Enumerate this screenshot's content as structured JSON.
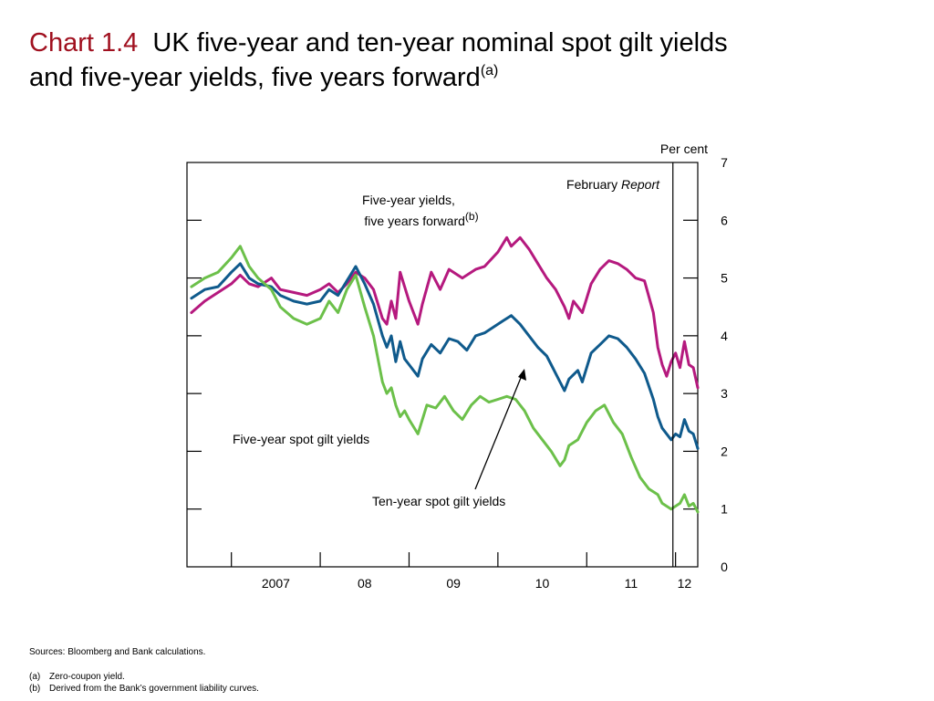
{
  "title": {
    "label": "Chart 1.4",
    "text_line1": "UK five-year and ten-year nominal spot gilt yields",
    "text_line2": "and five-year yields, five years forward",
    "marker": "(a)"
  },
  "notes": {
    "sources": "Sources:  Bloomberg and Bank calculations.",
    "a_key": "(a)",
    "a_text": "Zero-coupon yield.",
    "b_key": "(b)",
    "b_text": "Derived from the Bank’s government liability curves."
  },
  "chart_data": {
    "type": "line",
    "xlim": [
      2006.5,
      2012.25
    ],
    "ylim": [
      0,
      7
    ],
    "y_unit": "Per cent",
    "y_ticks": [
      "0",
      "1",
      "2",
      "3",
      "4",
      "5",
      "6",
      "7"
    ],
    "x_tick_labels": [
      {
        "label": "2007",
        "x": 2007.5
      },
      {
        "label": "08",
        "x": 2008.5
      },
      {
        "label": "09",
        "x": 2009.5
      },
      {
        "label": "10",
        "x": 2010.5
      },
      {
        "label": "11",
        "x": 2011.5
      },
      {
        "label": "12",
        "x": 2012.1
      }
    ],
    "x_year_ticks": [
      2007,
      2008,
      2009,
      2010,
      2011,
      2012
    ],
    "vline": {
      "x": 2011.97,
      "label_pre": "February",
      "label_em": "Report"
    },
    "annotations": {
      "five_year_forward": {
        "line1": "Five-year yields,",
        "line2": "five years forward",
        "marker": "(b)"
      },
      "five_year_spot": "Five-year spot gilt yields",
      "ten_year_spot": "Ten-year spot gilt yields"
    },
    "series": [
      {
        "key": "fwd",
        "color": "#b5197e",
        "points": [
          [
            2006.55,
            4.4
          ],
          [
            2006.7,
            4.6
          ],
          [
            2006.85,
            4.75
          ],
          [
            2007.0,
            4.9
          ],
          [
            2007.1,
            5.05
          ],
          [
            2007.2,
            4.9
          ],
          [
            2007.3,
            4.85
          ],
          [
            2007.45,
            5.0
          ],
          [
            2007.55,
            4.8
          ],
          [
            2007.7,
            4.75
          ],
          [
            2007.85,
            4.7
          ],
          [
            2008.0,
            4.8
          ],
          [
            2008.1,
            4.9
          ],
          [
            2008.2,
            4.75
          ],
          [
            2008.3,
            4.9
          ],
          [
            2008.4,
            5.1
          ],
          [
            2008.5,
            5.0
          ],
          [
            2008.6,
            4.8
          ],
          [
            2008.7,
            4.3
          ],
          [
            2008.75,
            4.2
          ],
          [
            2008.8,
            4.6
          ],
          [
            2008.85,
            4.3
          ],
          [
            2008.9,
            5.1
          ],
          [
            2009.0,
            4.6
          ],
          [
            2009.1,
            4.2
          ],
          [
            2009.15,
            4.55
          ],
          [
            2009.25,
            5.1
          ],
          [
            2009.35,
            4.8
          ],
          [
            2009.45,
            5.15
          ],
          [
            2009.6,
            5.0
          ],
          [
            2009.75,
            5.15
          ],
          [
            2009.85,
            5.2
          ],
          [
            2010.0,
            5.45
          ],
          [
            2010.1,
            5.7
          ],
          [
            2010.15,
            5.55
          ],
          [
            2010.25,
            5.7
          ],
          [
            2010.35,
            5.5
          ],
          [
            2010.45,
            5.25
          ],
          [
            2010.55,
            5.0
          ],
          [
            2010.65,
            4.8
          ],
          [
            2010.75,
            4.5
          ],
          [
            2010.8,
            4.3
          ],
          [
            2010.85,
            4.6
          ],
          [
            2010.95,
            4.4
          ],
          [
            2011.05,
            4.9
          ],
          [
            2011.15,
            5.15
          ],
          [
            2011.25,
            5.3
          ],
          [
            2011.35,
            5.25
          ],
          [
            2011.45,
            5.15
          ],
          [
            2011.55,
            5.0
          ],
          [
            2011.65,
            4.95
          ],
          [
            2011.75,
            4.4
          ],
          [
            2011.8,
            3.8
          ],
          [
            2011.85,
            3.5
          ],
          [
            2011.9,
            3.3
          ],
          [
            2011.95,
            3.55
          ],
          [
            2012.0,
            3.7
          ],
          [
            2012.05,
            3.45
          ],
          [
            2012.1,
            3.9
          ],
          [
            2012.15,
            3.5
          ],
          [
            2012.2,
            3.45
          ],
          [
            2012.25,
            3.1
          ]
        ]
      },
      {
        "key": "tenyr",
        "color": "#0f5a8c",
        "points": [
          [
            2006.55,
            4.65
          ],
          [
            2006.7,
            4.8
          ],
          [
            2006.85,
            4.85
          ],
          [
            2007.0,
            5.1
          ],
          [
            2007.1,
            5.25
          ],
          [
            2007.2,
            5.0
          ],
          [
            2007.3,
            4.9
          ],
          [
            2007.45,
            4.85
          ],
          [
            2007.55,
            4.7
          ],
          [
            2007.7,
            4.6
          ],
          [
            2007.85,
            4.55
          ],
          [
            2008.0,
            4.6
          ],
          [
            2008.1,
            4.8
          ],
          [
            2008.2,
            4.7
          ],
          [
            2008.3,
            4.95
          ],
          [
            2008.4,
            5.2
          ],
          [
            2008.5,
            4.9
          ],
          [
            2008.6,
            4.55
          ],
          [
            2008.7,
            4.0
          ],
          [
            2008.75,
            3.8
          ],
          [
            2008.8,
            4.0
          ],
          [
            2008.85,
            3.55
          ],
          [
            2008.9,
            3.9
          ],
          [
            2008.95,
            3.6
          ],
          [
            2009.0,
            3.5
          ],
          [
            2009.1,
            3.3
          ],
          [
            2009.15,
            3.6
          ],
          [
            2009.25,
            3.85
          ],
          [
            2009.35,
            3.7
          ],
          [
            2009.45,
            3.95
          ],
          [
            2009.55,
            3.9
          ],
          [
            2009.65,
            3.75
          ],
          [
            2009.75,
            4.0
          ],
          [
            2009.85,
            4.05
          ],
          [
            2009.95,
            4.15
          ],
          [
            2010.05,
            4.25
          ],
          [
            2010.15,
            4.35
          ],
          [
            2010.25,
            4.2
          ],
          [
            2010.35,
            4.0
          ],
          [
            2010.45,
            3.8
          ],
          [
            2010.55,
            3.65
          ],
          [
            2010.6,
            3.5
          ],
          [
            2010.7,
            3.2
          ],
          [
            2010.75,
            3.05
          ],
          [
            2010.8,
            3.25
          ],
          [
            2010.9,
            3.4
          ],
          [
            2010.95,
            3.2
          ],
          [
            2011.05,
            3.7
          ],
          [
            2011.15,
            3.85
          ],
          [
            2011.25,
            4.0
          ],
          [
            2011.35,
            3.95
          ],
          [
            2011.45,
            3.8
          ],
          [
            2011.55,
            3.6
          ],
          [
            2011.65,
            3.35
          ],
          [
            2011.75,
            2.9
          ],
          [
            2011.8,
            2.6
          ],
          [
            2011.85,
            2.4
          ],
          [
            2011.9,
            2.3
          ],
          [
            2011.95,
            2.2
          ],
          [
            2012.0,
            2.3
          ],
          [
            2012.05,
            2.25
          ],
          [
            2012.1,
            2.55
          ],
          [
            2012.15,
            2.35
          ],
          [
            2012.2,
            2.3
          ],
          [
            2012.25,
            2.05
          ]
        ]
      },
      {
        "key": "fivyr",
        "color": "#6cc04a",
        "points": [
          [
            2006.55,
            4.85
          ],
          [
            2006.7,
            5.0
          ],
          [
            2006.85,
            5.1
          ],
          [
            2007.0,
            5.35
          ],
          [
            2007.1,
            5.55
          ],
          [
            2007.2,
            5.2
          ],
          [
            2007.3,
            5.0
          ],
          [
            2007.45,
            4.8
          ],
          [
            2007.55,
            4.5
          ],
          [
            2007.7,
            4.3
          ],
          [
            2007.85,
            4.2
          ],
          [
            2008.0,
            4.3
          ],
          [
            2008.1,
            4.6
          ],
          [
            2008.2,
            4.4
          ],
          [
            2008.3,
            4.8
          ],
          [
            2008.4,
            5.05
          ],
          [
            2008.5,
            4.5
          ],
          [
            2008.6,
            4.0
          ],
          [
            2008.7,
            3.2
          ],
          [
            2008.75,
            3.0
          ],
          [
            2008.8,
            3.1
          ],
          [
            2008.85,
            2.8
          ],
          [
            2008.9,
            2.6
          ],
          [
            2008.95,
            2.7
          ],
          [
            2009.0,
            2.55
          ],
          [
            2009.1,
            2.3
          ],
          [
            2009.2,
            2.8
          ],
          [
            2009.3,
            2.75
          ],
          [
            2009.4,
            2.95
          ],
          [
            2009.5,
            2.7
          ],
          [
            2009.6,
            2.55
          ],
          [
            2009.7,
            2.8
          ],
          [
            2009.8,
            2.95
          ],
          [
            2009.9,
            2.85
          ],
          [
            2010.0,
            2.9
          ],
          [
            2010.1,
            2.95
          ],
          [
            2010.2,
            2.9
          ],
          [
            2010.3,
            2.7
          ],
          [
            2010.4,
            2.4
          ],
          [
            2010.5,
            2.2
          ],
          [
            2010.6,
            2.0
          ],
          [
            2010.7,
            1.75
          ],
          [
            2010.75,
            1.85
          ],
          [
            2010.8,
            2.1
          ],
          [
            2010.9,
            2.2
          ],
          [
            2011.0,
            2.5
          ],
          [
            2011.1,
            2.7
          ],
          [
            2011.2,
            2.8
          ],
          [
            2011.3,
            2.5
          ],
          [
            2011.4,
            2.3
          ],
          [
            2011.5,
            1.9
          ],
          [
            2011.6,
            1.55
          ],
          [
            2011.7,
            1.35
          ],
          [
            2011.8,
            1.25
          ],
          [
            2011.85,
            1.1
          ],
          [
            2011.95,
            1.0
          ],
          [
            2012.05,
            1.1
          ],
          [
            2012.1,
            1.25
          ],
          [
            2012.15,
            1.05
          ],
          [
            2012.2,
            1.1
          ],
          [
            2012.25,
            0.95
          ]
        ]
      }
    ]
  }
}
